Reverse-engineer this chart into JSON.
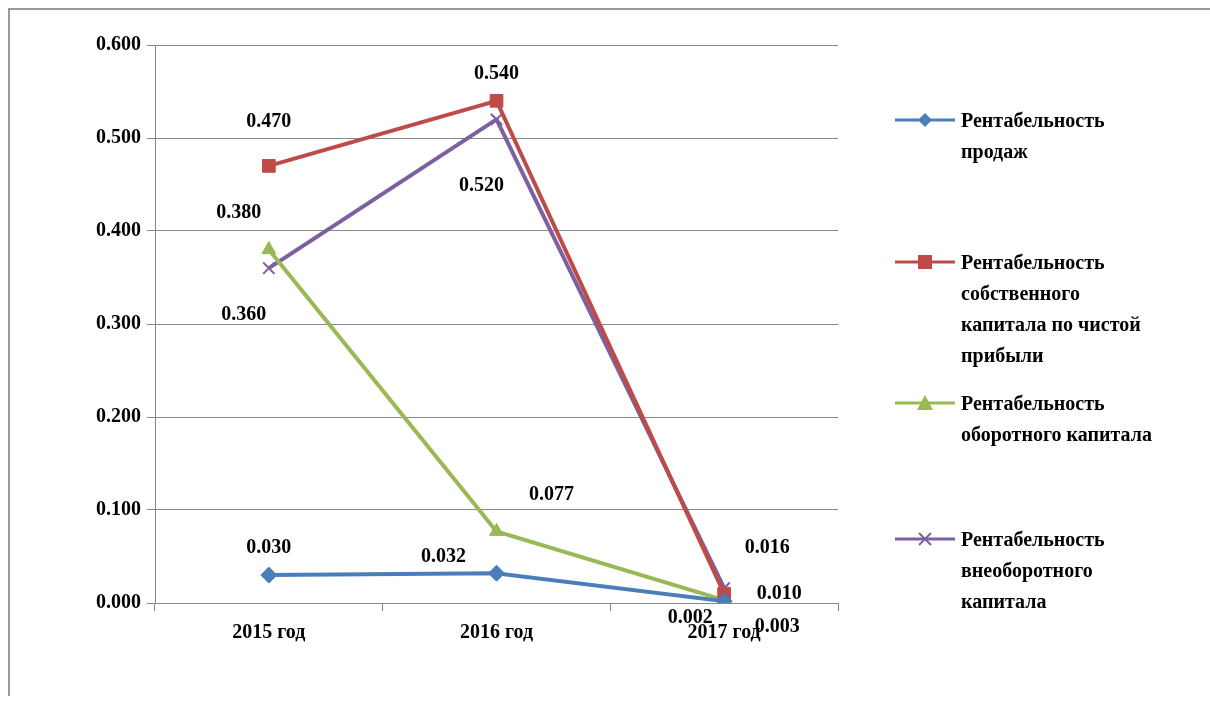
{
  "chart_data": {
    "type": "line",
    "categories": [
      "2015 год",
      "2016 год",
      "2017 год"
    ],
    "series": [
      {
        "name": "Рентабельность продаж",
        "color": "#4a7ebb",
        "marker": "diamond",
        "values": [
          0.03,
          0.032,
          0.002
        ],
        "value_labels": [
          "0.030",
          "0.032",
          "0.002"
        ]
      },
      {
        "name": "Рентабельность собственного капитала по чистой прибыли",
        "color": "#be4b48",
        "marker": "square",
        "values": [
          0.47,
          0.54,
          0.01
        ],
        "value_labels": [
          "0.470",
          "0.540",
          "0.010"
        ]
      },
      {
        "name": "Рентабельность оборотного капитала",
        "color": "#98b954",
        "marker": "triangle",
        "values": [
          0.38,
          0.077,
          0.003
        ],
        "value_labels": [
          "0.380",
          "0.077",
          "0.003"
        ]
      },
      {
        "name": "Рентабельность внеоборотного капитала",
        "color": "#7d60a0",
        "marker": "cross",
        "values": [
          0.36,
          0.52,
          0.016
        ],
        "value_labels": [
          "0.360",
          "0.520",
          "0.016"
        ]
      }
    ],
    "ylim": [
      0,
      0.6
    ],
    "yticks": [
      {
        "value": 0,
        "label": "0.000"
      },
      {
        "value": 0.1,
        "label": "0.100"
      },
      {
        "value": 0.2,
        "label": "0.200"
      },
      {
        "value": 0.3,
        "label": "0.300"
      },
      {
        "value": 0.4,
        "label": "0.400"
      },
      {
        "value": 0.5,
        "label": "0.500"
      },
      {
        "value": 0.6,
        "label": "0.600"
      }
    ],
    "grid": "y",
    "legend": "right"
  }
}
